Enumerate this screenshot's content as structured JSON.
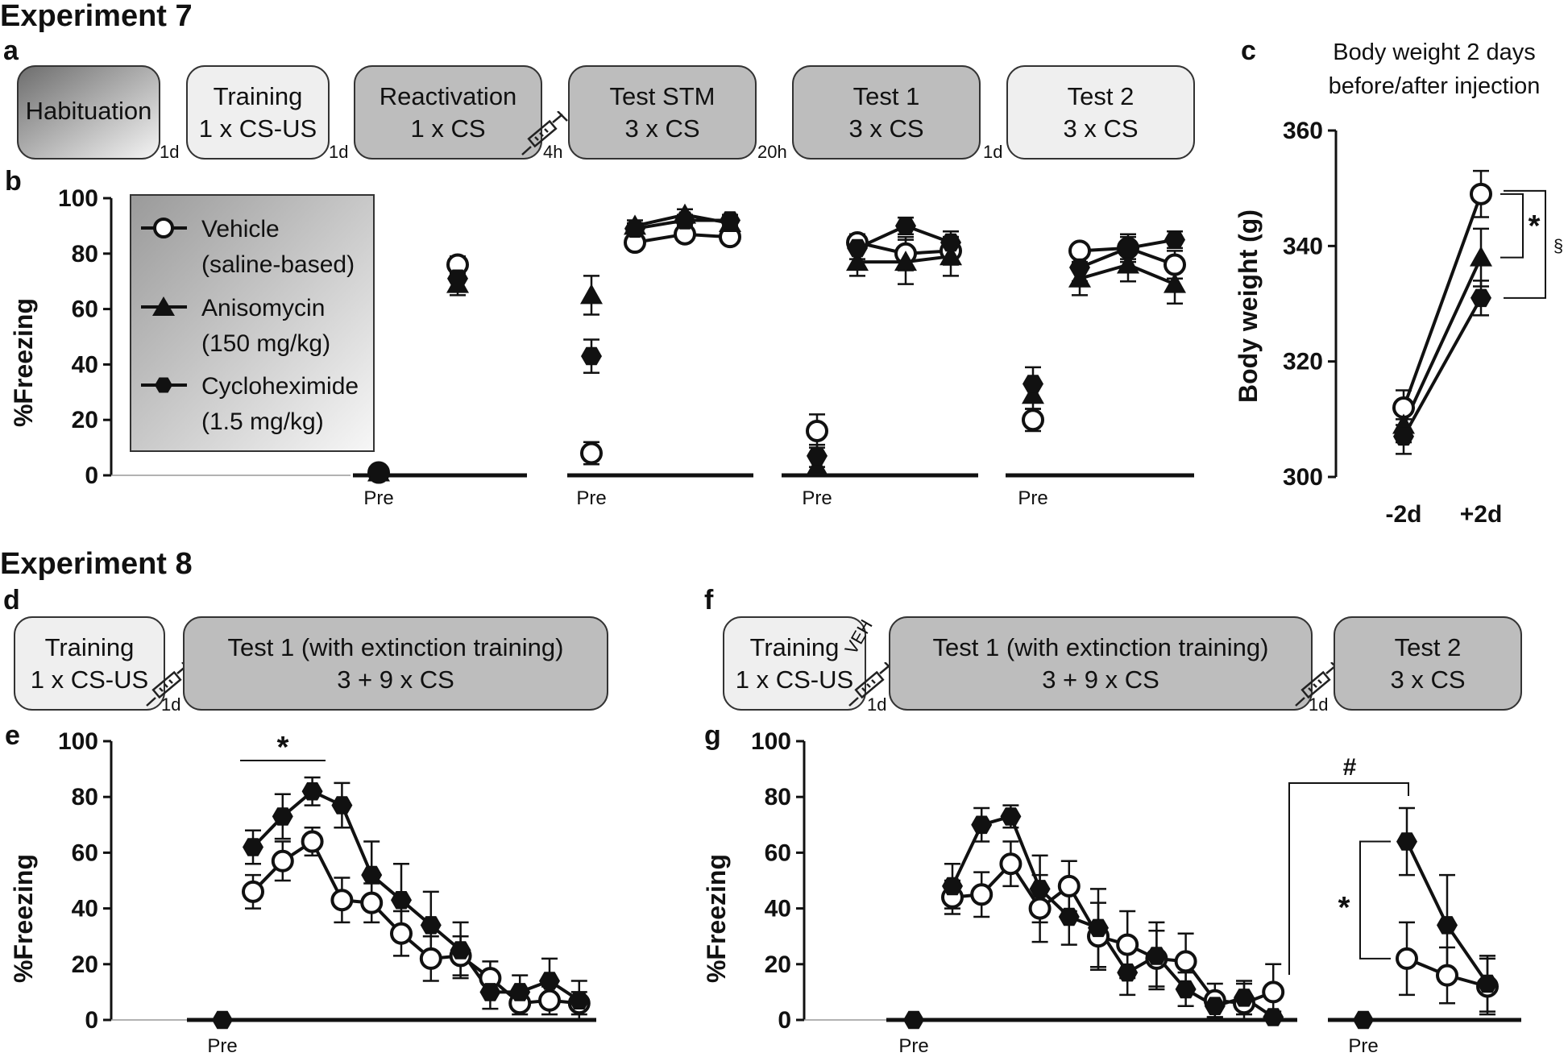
{
  "experiment7": {
    "title": "Experiment 7",
    "panel_a": {
      "label": "a",
      "boxes": [
        {
          "line1": "Habituation",
          "line2": ""
        },
        {
          "line1": "Training",
          "line2": "1 x CS-US"
        },
        {
          "line1": "Reactivation",
          "line2": "1 x CS"
        },
        {
          "line1": "Test STM",
          "line2": "3 x CS"
        },
        {
          "line1": "Test 1",
          "line2": "3 x CS"
        },
        {
          "line1": "Test 2",
          "line2": "3 x CS"
        }
      ],
      "intervals": [
        "1d",
        "1d",
        "4h",
        "20h",
        "1d"
      ]
    }
  },
  "experiment8": {
    "title": "Experiment 8",
    "panel_d": {
      "label": "d",
      "boxes": [
        {
          "line1": "Training",
          "line2": "1 x CS-US"
        },
        {
          "line1": "Test 1 (with extinction training)",
          "line2": "3 + 9 x CS"
        }
      ],
      "intervals": [
        "1d"
      ]
    },
    "panel_f": {
      "label": "f",
      "boxes": [
        {
          "line1": "Training",
          "line2": "1 x CS-US"
        },
        {
          "line1": "Test 1 (with extinction training)",
          "line2": "3 + 9 x CS"
        },
        {
          "line1": "Test 2",
          "line2": "3 x CS"
        }
      ],
      "intervals": [
        "1d",
        "1d"
      ],
      "syringe_label": "VEH"
    }
  },
  "colors": {
    "gray_box": "#bdbdbd",
    "light_box": "#efefef",
    "marker": "#111111",
    "open_fill": "#ffffff"
  },
  "legend": {
    "items": [
      {
        "line1": "Vehicle",
        "line2": "(saline-based)",
        "marker": "circle-open"
      },
      {
        "line1": "Anisomycin",
        "line2": "(150 mg/kg)",
        "marker": "triangle"
      },
      {
        "line1": "Cycloheximide",
        "line2": "(1.5 mg/kg)",
        "marker": "hexagon"
      }
    ]
  },
  "chart_data": [
    {
      "id": "b",
      "label": "b",
      "type": "line",
      "ylabel": "%Freezing",
      "ylim": [
        0,
        100
      ],
      "yticks": [
        0,
        20,
        40,
        60,
        80,
        100
      ],
      "segments": [
        {
          "x_label": "Pre",
          "series": {
            "Vehicle": {
              "pre": [
                1,
                0
              ],
              "trials": [
                [
                  76,
                  3
                ]
              ]
            },
            "Anisomycin": {
              "pre": [
                1,
                0
              ],
              "trials": [
                [
                  69,
                  4
                ]
              ]
            },
            "Cycloheximide": {
              "pre": [
                1,
                0
              ],
              "trials": [
                [
                  71,
                  4
                ]
              ]
            }
          }
        },
        {
          "x_label": "Pre",
          "series": {
            "Vehicle": {
              "pre": [
                8,
                4
              ],
              "trials": [
                [
                  84,
                  2
                ],
                [
                  87,
                  2
                ],
                [
                  86,
                  2
                ]
              ]
            },
            "Anisomycin": {
              "pre": [
                65,
                7
              ],
              "trials": [
                [
                  90,
                  2
                ],
                [
                  94,
                  2
                ],
                [
                  91,
                  2
                ]
              ]
            },
            "Cycloheximide": {
              "pre": [
                43,
                6
              ],
              "trials": [
                [
                  89,
                  2
                ],
                [
                  92,
                  2
                ],
                [
                  92,
                  2
                ]
              ]
            }
          }
        },
        {
          "x_label": "Pre",
          "series": {
            "Vehicle": {
              "pre": [
                16,
                6
              ],
              "trials": [
                [
                  84,
                  3
                ],
                [
                  80,
                  6
                ],
                [
                  81,
                  5
                ]
              ]
            },
            "Anisomycin": {
              "pre": [
                3,
                3
              ],
              "trials": [
                [
                  77,
                  5
                ],
                [
                  77,
                  8
                ],
                [
                  79,
                  7
                ]
              ]
            },
            "Cycloheximide": {
              "pre": [
                7,
                4
              ],
              "trials": [
                [
                  82,
                  4
                ],
                [
                  90,
                  3
                ],
                [
                  84,
                  4
                ]
              ]
            }
          }
        },
        {
          "x_label": "Pre",
          "series": {
            "Vehicle": {
              "pre": [
                20,
                4
              ],
              "trials": [
                [
                  81,
                  2
                ],
                [
                  82,
                  5
                ],
                [
                  76,
                  5
                ]
              ]
            },
            "Anisomycin": {
              "pre": [
                29,
                5
              ],
              "trials": [
                [
                  71,
                  6
                ],
                [
                  76,
                  6
                ],
                [
                  69,
                  7
                ]
              ]
            },
            "Cycloheximide": {
              "pre": [
                33,
                6
              ],
              "trials": [
                [
                  75,
                  5
                ],
                [
                  82,
                  4
                ],
                [
                  85,
                  3
                ]
              ]
            }
          }
        }
      ]
    },
    {
      "id": "c",
      "label": "c",
      "type": "line",
      "title": "Body weight 2 days\nbefore/after injection",
      "title_line1": "Body weight 2 days",
      "title_line2": "before/after injection",
      "ylabel": "Body weight (g)",
      "ylim": [
        300,
        360
      ],
      "yticks": [
        300,
        320,
        340,
        360
      ],
      "categories": [
        "-2d",
        "+2d"
      ],
      "series": [
        {
          "name": "Vehicle",
          "marker": "circle-open",
          "values": [
            312,
            349
          ],
          "errors": [
            3,
            4
          ]
        },
        {
          "name": "Anisomycin",
          "marker": "triangle",
          "values": [
            309,
            338
          ],
          "errors": [
            3,
            5
          ]
        },
        {
          "name": "Cycloheximide",
          "marker": "hexagon",
          "values": [
            307,
            331
          ],
          "errors": [
            3,
            3
          ]
        }
      ],
      "annotations": [
        "*",
        "§"
      ]
    },
    {
      "id": "e",
      "label": "e",
      "type": "line",
      "ylabel": "%Freezing",
      "ylim": [
        0,
        100
      ],
      "yticks": [
        0,
        20,
        40,
        60,
        80,
        100
      ],
      "x_label": "Pre",
      "series": [
        {
          "name": "Vehicle",
          "marker": "circle-open",
          "pre": 0,
          "values": [
            46,
            57,
            64,
            43,
            42,
            31,
            22,
            23,
            15,
            6,
            7,
            6
          ],
          "errors": [
            6,
            7,
            5,
            8,
            7,
            8,
            8,
            7,
            6,
            4,
            5,
            4
          ]
        },
        {
          "name": "Cycloheximide",
          "marker": "hexagon",
          "pre": 0,
          "values": [
            62,
            73,
            82,
            77,
            52,
            43,
            34,
            25,
            10,
            10,
            14,
            7
          ],
          "errors": [
            6,
            8,
            5,
            8,
            12,
            13,
            12,
            10,
            6,
            6,
            8,
            7
          ]
        }
      ],
      "annotations": [
        "*"
      ]
    },
    {
      "id": "g",
      "label": "g",
      "type": "line",
      "ylabel": "%Freezing",
      "ylim": [
        0,
        100
      ],
      "yticks": [
        0,
        20,
        40,
        60,
        80,
        100
      ],
      "segments": [
        {
          "x_label": "Pre",
          "series": [
            {
              "name": "Vehicle",
              "marker": "circle-open",
              "pre": 0,
              "values": [
                44,
                45,
                56,
                40,
                48,
                30,
                27,
                22,
                21,
                7,
                6,
                10
              ],
              "errors": [
                6,
                8,
                8,
                12,
                9,
                12,
                12,
                10,
                10,
                6,
                7,
                10
              ]
            },
            {
              "name": "Cycloheximide",
              "marker": "hexagon",
              "pre": 0,
              "values": [
                48,
                70,
                73,
                47,
                37,
                33,
                17,
                23,
                11,
                5,
                8,
                1
              ],
              "errors": [
                8,
                6,
                4,
                12,
                10,
                14,
                8,
                12,
                6,
                4,
                6,
                2
              ]
            }
          ]
        },
        {
          "x_label": "Pre",
          "series": [
            {
              "name": "Vehicle",
              "marker": "circle-open",
              "pre": 0,
              "values": [
                22,
                16,
                12
              ],
              "errors": [
                13,
                10,
                10
              ]
            },
            {
              "name": "Cycloheximide",
              "marker": "hexagon",
              "pre": 0,
              "values": [
                64,
                34,
                13
              ],
              "errors": [
                12,
                18,
                10
              ]
            }
          ]
        }
      ],
      "annotations": [
        "#",
        "*"
      ]
    }
  ]
}
